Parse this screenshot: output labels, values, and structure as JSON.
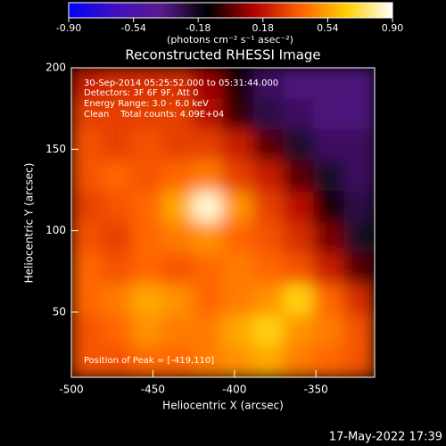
{
  "chart_data": {
    "type": "heatmap",
    "title": "Reconstructed RHESSI Image",
    "xlabel": "Heliocentric X (arcsec)",
    "ylabel": "Heliocentric Y (arcsec)",
    "xlim": [
      -500,
      -314
    ],
    "ylim": [
      10,
      200
    ],
    "xticks": [
      -500,
      -450,
      -400,
      -350
    ],
    "yticks": [
      50,
      100,
      150,
      200
    ],
    "zlim": [
      -0.9,
      0.9
    ],
    "colorbar_ticks": [
      {
        "value": -0.9,
        "label": "-0.90"
      },
      -0.54,
      -0.18,
      0.18,
      0.54,
      {
        "value": 0.9,
        "label": "0.90"
      }
    ],
    "colorbar_label": "(photons cm⁻² s⁻¹ asec⁻²)",
    "colormap": [
      "#0000ff",
      "#4010c0",
      "#5a1a90",
      "#000000",
      "#b00000",
      "#ff6000",
      "#ffd000",
      "#ffffff"
    ],
    "annotations": [
      "30-Sep-2014 05:25:52.000 to 05:31:44.000",
      "Detectors: 3F 6F 9F, Att 0",
      "Energy Range: 3.0 - 6.0 keV",
      "Clean    Total counts: 4.09E+04"
    ],
    "peak_label": "Position of Peak = [-419,110]",
    "timestamp": "17-May-2022 17:39",
    "z": [
      [
        0.2,
        0.25,
        0.25,
        0.25,
        0.1,
        -0.1,
        -0.3,
        -0.35,
        -0.35,
        -0.35
      ],
      [
        0.3,
        0.3,
        0.3,
        0.3,
        0.15,
        -0.05,
        -0.25,
        -0.3,
        -0.35,
        -0.35
      ],
      [
        0.35,
        0.3,
        0.35,
        0.3,
        0.3,
        0.2,
        0.0,
        -0.2,
        -0.3,
        -0.3
      ],
      [
        0.35,
        0.4,
        0.35,
        0.4,
        0.45,
        0.3,
        0.2,
        0.0,
        -0.2,
        -0.3
      ],
      [
        0.3,
        0.35,
        0.4,
        0.55,
        0.85,
        0.5,
        0.3,
        0.15,
        -0.1,
        -0.25
      ],
      [
        0.35,
        0.3,
        0.4,
        0.45,
        0.5,
        0.4,
        0.35,
        0.25,
        0.05,
        -0.2
      ],
      [
        0.4,
        0.35,
        0.4,
        0.35,
        0.4,
        0.45,
        0.4,
        0.35,
        0.2,
        0.0
      ],
      [
        0.4,
        0.45,
        0.55,
        0.5,
        0.4,
        0.45,
        0.5,
        0.65,
        0.4,
        0.25
      ],
      [
        0.35,
        0.4,
        0.5,
        0.45,
        0.45,
        0.55,
        0.65,
        0.5,
        0.45,
        0.35
      ],
      [
        0.35,
        0.35,
        0.4,
        0.4,
        0.45,
        0.5,
        0.55,
        0.45,
        0.4,
        0.35
      ]
    ]
  }
}
